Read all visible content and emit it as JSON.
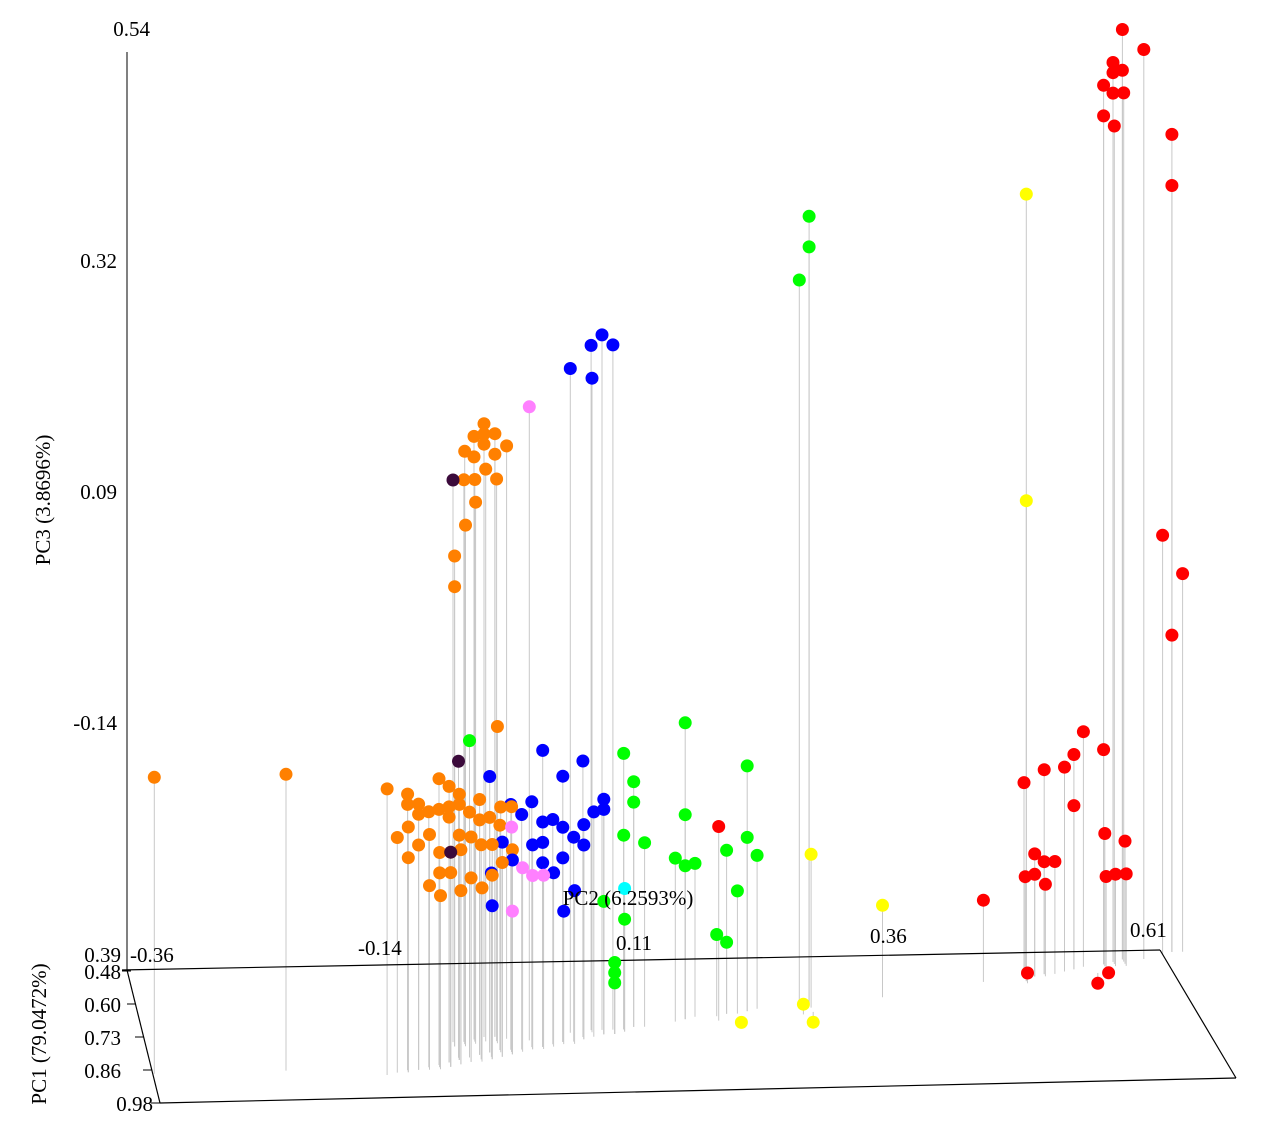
{
  "chart_data": {
    "type": "scatter",
    "title": "",
    "projection": "3d",
    "axes": {
      "pc2": {
        "label": "PC2 (6.2593%)",
        "ticks": [
          "-0.36",
          "-0.14",
          "0.11",
          "0.36",
          "0.61"
        ],
        "range": [
          -0.36,
          0.61
        ]
      },
      "pc3": {
        "label": "PC3 (3.8696%)",
        "ticks": [
          "0.54",
          "0.32",
          "0.09",
          "-0.14"
        ],
        "range": [
          -0.37,
          0.54
        ]
      },
      "pc1": {
        "label": "PC1 (79.0472%)",
        "ticks": [
          "0.39",
          "0.48",
          "0.60",
          "0.73",
          "0.86",
          "0.98"
        ],
        "range": [
          0.39,
          0.98
        ]
      }
    },
    "grid": false,
    "legend": "none",
    "drop_lines": true,
    "series": [
      {
        "color": "#ff8000",
        "points": [
          [
            -0.36,
            0.85,
            -0.08
          ],
          [
            -0.24,
            0.85,
            -0.08
          ],
          [
            -0.15,
            0.88,
            -0.09
          ],
          [
            -0.07,
            0.75,
            0.21
          ],
          [
            -0.06,
            0.73,
            0.2
          ],
          [
            -0.06,
            0.73,
            0.22
          ],
          [
            -0.05,
            0.72,
            0.22
          ],
          [
            -0.05,
            0.72,
            0.21
          ],
          [
            -0.05,
            0.72,
            0.23
          ],
          [
            -0.04,
            0.72,
            0.22
          ],
          [
            -0.04,
            0.72,
            0.2
          ],
          [
            -0.03,
            0.73,
            0.21
          ],
          [
            -0.07,
            0.74,
            0.18
          ],
          [
            -0.06,
            0.74,
            0.18
          ],
          [
            -0.05,
            0.74,
            0.19
          ],
          [
            -0.04,
            0.74,
            0.18
          ],
          [
            -0.06,
            0.75,
            0.16
          ],
          [
            -0.07,
            0.76,
            0.14
          ],
          [
            -0.08,
            0.76,
            0.11
          ],
          [
            -0.08,
            0.76,
            0.08
          ],
          [
            -0.04,
            0.75,
            -0.06
          ],
          [
            -0.13,
            0.86,
            -0.1
          ],
          [
            -0.13,
            0.86,
            -0.11
          ],
          [
            -0.12,
            0.86,
            -0.11
          ],
          [
            -0.14,
            0.87,
            -0.14
          ],
          [
            -0.13,
            0.87,
            -0.13
          ],
          [
            -0.12,
            0.86,
            -0.12
          ],
          [
            -0.11,
            0.85,
            -0.12
          ],
          [
            -0.1,
            0.84,
            -0.09
          ],
          [
            -0.1,
            0.84,
            -0.12
          ],
          [
            -0.09,
            0.83,
            -0.1
          ],
          [
            -0.09,
            0.83,
            -0.12
          ],
          [
            -0.09,
            0.83,
            -0.13
          ],
          [
            -0.08,
            0.82,
            -0.11
          ],
          [
            -0.08,
            0.82,
            -0.12
          ],
          [
            -0.08,
            0.82,
            -0.15
          ],
          [
            -0.07,
            0.81,
            -0.13
          ],
          [
            -0.06,
            0.8,
            -0.12
          ],
          [
            -0.06,
            0.8,
            -0.14
          ],
          [
            -0.05,
            0.79,
            -0.14
          ],
          [
            -0.04,
            0.78,
            -0.15
          ],
          [
            -0.04,
            0.79,
            -0.13
          ],
          [
            -0.03,
            0.79,
            -0.13
          ],
          [
            -0.13,
            0.87,
            -0.16
          ],
          [
            -0.12,
            0.86,
            -0.15
          ],
          [
            -0.11,
            0.86,
            -0.14
          ],
          [
            -0.1,
            0.85,
            -0.16
          ],
          [
            -0.09,
            0.85,
            -0.16
          ],
          [
            -0.08,
            0.84,
            -0.16
          ],
          [
            -0.07,
            0.83,
            -0.15
          ],
          [
            -0.06,
            0.82,
            -0.16
          ],
          [
            -0.05,
            0.82,
            -0.16
          ],
          [
            -0.1,
            0.86,
            -0.2
          ],
          [
            -0.09,
            0.85,
            -0.18
          ],
          [
            -0.08,
            0.84,
            -0.2
          ],
          [
            -0.07,
            0.83,
            -0.19
          ],
          [
            -0.06,
            0.83,
            -0.2
          ],
          [
            -0.05,
            0.82,
            -0.19
          ],
          [
            -0.04,
            0.81,
            -0.18
          ],
          [
            -0.03,
            0.8,
            -0.17
          ],
          [
            -0.1,
            0.85,
            -0.18
          ],
          [
            -0.11,
            0.86,
            -0.19
          ]
        ]
      },
      {
        "color": "#3b0a3b",
        "points": [
          [
            -0.08,
            0.74,
            0.18
          ],
          [
            -0.08,
            0.81,
            -0.08
          ],
          [
            -0.09,
            0.85,
            -0.16
          ]
        ]
      },
      {
        "color": "#0000ff",
        "points": [
          [
            0.05,
            0.7,
            0.3
          ],
          [
            0.06,
            0.7,
            0.31
          ],
          [
            0.07,
            0.7,
            0.3
          ],
          [
            0.03,
            0.71,
            0.28
          ],
          [
            0.05,
            0.71,
            0.27
          ],
          [
            -0.05,
            0.79,
            -0.1
          ],
          [
            -0.03,
            0.78,
            -0.13
          ],
          [
            -0.01,
            0.77,
            -0.13
          ],
          [
            -0.02,
            0.78,
            -0.14
          ],
          [
            0.0,
            0.77,
            -0.15
          ],
          [
            0.01,
            0.76,
            -0.15
          ],
          [
            0.02,
            0.75,
            -0.16
          ],
          [
            0.04,
            0.74,
            -0.16
          ],
          [
            0.05,
            0.73,
            -0.15
          ],
          [
            0.06,
            0.72,
            -0.15
          ],
          [
            0.03,
            0.75,
            -0.17
          ],
          [
            0.04,
            0.74,
            -0.18
          ],
          [
            0.02,
            0.75,
            -0.19
          ],
          [
            0.0,
            0.77,
            -0.17
          ],
          [
            -0.01,
            0.78,
            -0.17
          ],
          [
            -0.03,
            0.8,
            -0.18
          ],
          [
            -0.05,
            0.81,
            -0.19
          ],
          [
            -0.04,
            0.81,
            -0.16
          ],
          [
            0.0,
            0.77,
            -0.19
          ],
          [
            0.01,
            0.77,
            -0.2
          ],
          [
            0.03,
            0.76,
            -0.22
          ],
          [
            -0.05,
            0.82,
            -0.22
          ],
          [
            0.02,
            0.76,
            -0.24
          ],
          [
            0.04,
            0.73,
            -0.1
          ],
          [
            0.02,
            0.75,
            -0.11
          ],
          [
            0.0,
            0.77,
            -0.08
          ],
          [
            0.06,
            0.72,
            -0.14
          ]
        ]
      },
      {
        "color": "#ff80ff",
        "points": [
          [
            -0.01,
            0.74,
            0.25
          ],
          [
            -0.03,
            0.79,
            -0.15
          ],
          [
            -0.02,
            0.79,
            -0.19
          ],
          [
            -0.03,
            0.8,
            -0.23
          ],
          [
            -0.01,
            0.78,
            -0.2
          ],
          [
            0.0,
            0.78,
            -0.2
          ]
        ]
      },
      {
        "color": "#00ff00",
        "points": [
          [
            0.26,
            0.6,
            0.4
          ],
          [
            0.26,
            0.6,
            0.37
          ],
          [
            0.25,
            0.61,
            0.34
          ],
          [
            -0.07,
            0.81,
            -0.06
          ],
          [
            0.08,
            0.7,
            -0.1
          ],
          [
            0.09,
            0.69,
            -0.13
          ],
          [
            0.09,
            0.69,
            -0.15
          ],
          [
            0.14,
            0.66,
            -0.08
          ],
          [
            0.14,
            0.66,
            -0.17
          ],
          [
            0.2,
            0.63,
            -0.13
          ],
          [
            0.08,
            0.7,
            -0.18
          ],
          [
            0.1,
            0.69,
            -0.19
          ],
          [
            0.13,
            0.67,
            -0.21
          ],
          [
            0.14,
            0.66,
            -0.22
          ],
          [
            0.15,
            0.65,
            -0.22
          ],
          [
            0.18,
            0.64,
            -0.21
          ],
          [
            0.2,
            0.63,
            -0.2
          ],
          [
            0.21,
            0.62,
            -0.22
          ],
          [
            0.19,
            0.64,
            -0.25
          ],
          [
            0.06,
            0.72,
            -0.24
          ],
          [
            0.08,
            0.71,
            -0.26
          ],
          [
            0.07,
            0.72,
            -0.3
          ],
          [
            0.17,
            0.65,
            -0.29
          ],
          [
            0.18,
            0.64,
            -0.3
          ],
          [
            0.07,
            0.72,
            -0.31
          ],
          [
            0.07,
            0.72,
            -0.32
          ]
        ]
      },
      {
        "color": "#00ffff",
        "points": [
          [
            0.08,
            0.71,
            -0.23
          ]
        ]
      },
      {
        "color": "#ffff00",
        "points": [
          [
            0.47,
            0.52,
            0.4
          ],
          [
            0.47,
            0.52,
            0.1
          ],
          [
            0.26,
            0.62,
            -0.22
          ],
          [
            0.33,
            0.58,
            -0.28
          ],
          [
            0.25,
            0.65,
            -0.36
          ],
          [
            0.19,
            0.68,
            -0.37
          ],
          [
            0.26,
            0.64,
            -0.38
          ]
        ]
      },
      {
        "color": "#ff0000",
        "points": [
          [
            0.57,
            0.43,
            0.54
          ],
          [
            0.59,
            0.43,
            0.52
          ],
          [
            0.56,
            0.44,
            0.51
          ],
          [
            0.56,
            0.44,
            0.5
          ],
          [
            0.57,
            0.43,
            0.5
          ],
          [
            0.55,
            0.45,
            0.49
          ],
          [
            0.56,
            0.44,
            0.48
          ],
          [
            0.57,
            0.44,
            0.48
          ],
          [
            0.55,
            0.45,
            0.46
          ],
          [
            0.56,
            0.45,
            0.45
          ],
          [
            0.62,
            0.4,
            0.43
          ],
          [
            0.62,
            0.4,
            0.38
          ],
          [
            0.61,
            0.41,
            0.04
          ],
          [
            0.63,
            0.4,
            0.0
          ],
          [
            0.62,
            0.4,
            -0.06
          ],
          [
            0.53,
            0.46,
            -0.14
          ],
          [
            0.55,
            0.45,
            -0.16
          ],
          [
            0.52,
            0.47,
            -0.16
          ],
          [
            0.49,
            0.49,
            -0.17
          ],
          [
            0.51,
            0.48,
            -0.17
          ],
          [
            0.47,
            0.5,
            -0.18
          ],
          [
            0.52,
            0.47,
            -0.21
          ],
          [
            0.17,
            0.67,
            -0.18
          ],
          [
            0.48,
            0.5,
            -0.25
          ],
          [
            0.49,
            0.49,
            -0.26
          ],
          [
            0.5,
            0.49,
            -0.26
          ],
          [
            0.55,
            0.46,
            -0.24
          ],
          [
            0.57,
            0.45,
            -0.25
          ],
          [
            0.47,
            0.51,
            -0.27
          ],
          [
            0.48,
            0.5,
            -0.27
          ],
          [
            0.49,
            0.5,
            -0.28
          ],
          [
            0.43,
            0.52,
            -0.29
          ],
          [
            0.55,
            0.47,
            -0.28
          ],
          [
            0.56,
            0.46,
            -0.28
          ],
          [
            0.57,
            0.46,
            -0.28
          ],
          [
            0.47,
            0.53,
            -0.36
          ],
          [
            0.54,
            0.49,
            -0.38
          ],
          [
            0.55,
            0.49,
            -0.37
          ]
        ]
      }
    ]
  }
}
